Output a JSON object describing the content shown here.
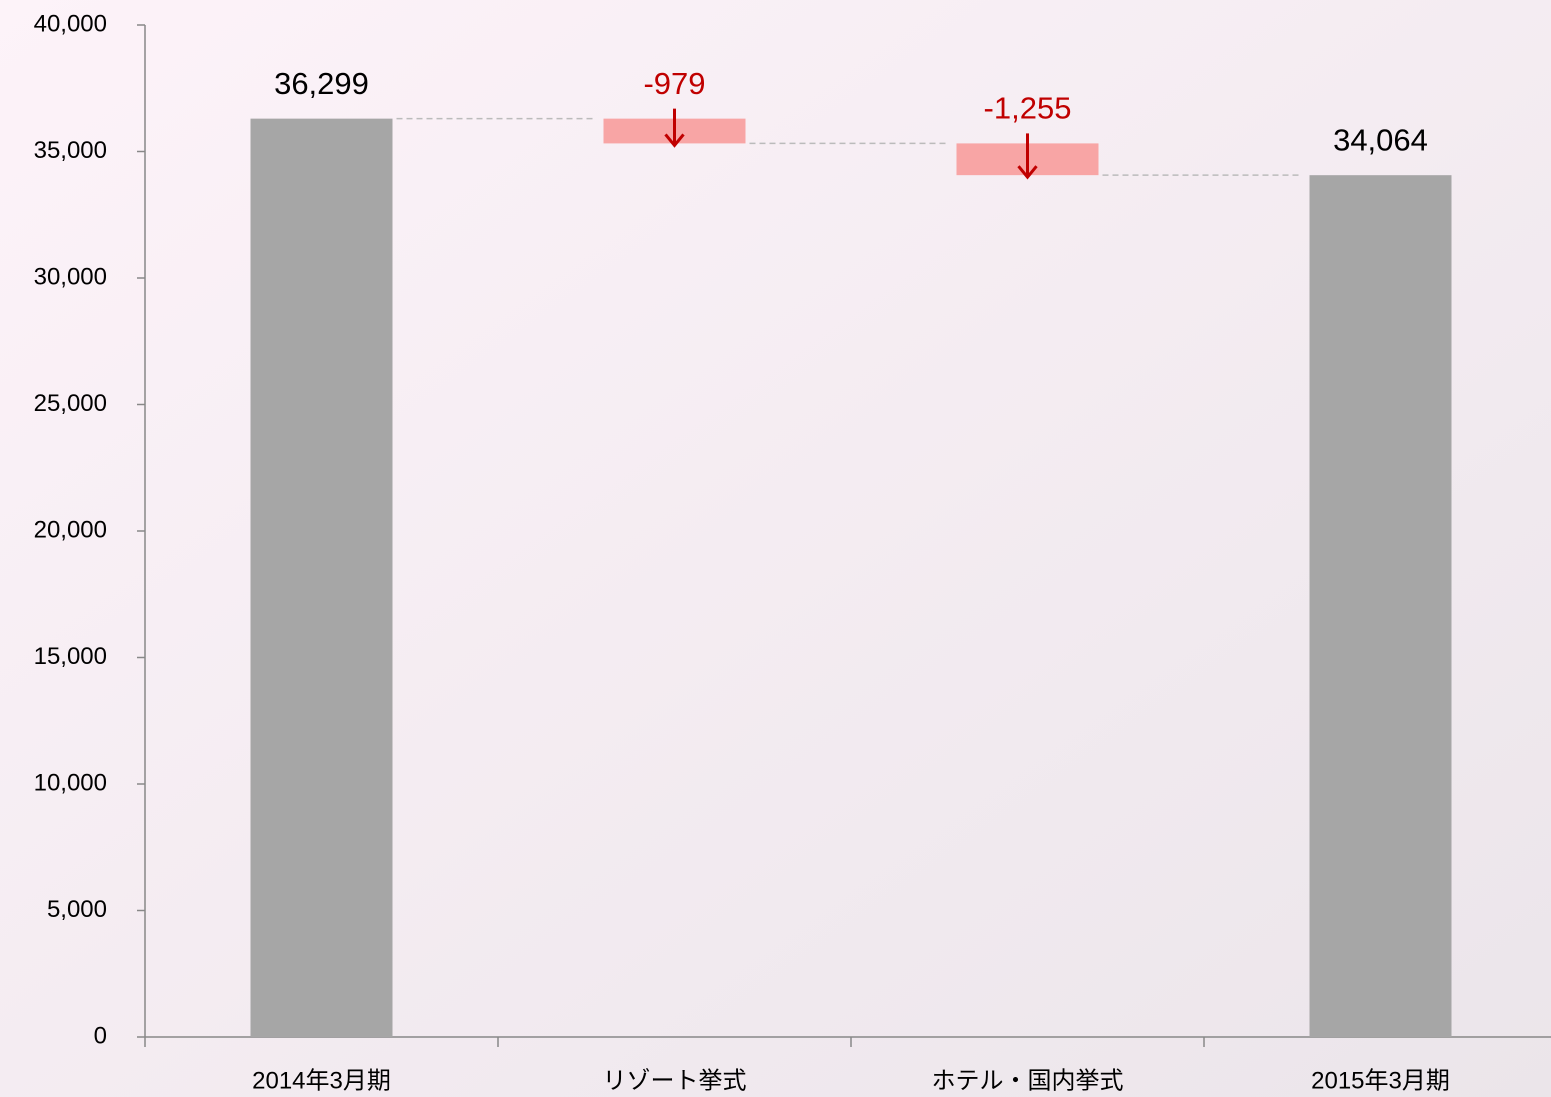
{
  "chart_data": {
    "type": "waterfall",
    "categories": [
      "2014年3月期",
      "リゾート挙式",
      "ホテル・国内挙式",
      "2015年3月期"
    ],
    "values": [
      36299,
      -979,
      -1255,
      34064
    ],
    "value_labels": [
      "36,299",
      "-979",
      "-1,255",
      "34,064"
    ],
    "colors": {
      "total": "#a6a6a6",
      "decrease": "#f8a5a5",
      "decrease_label": "#c00000",
      "total_label": "#000000"
    },
    "ylim": [
      0,
      40000
    ],
    "yticks": [
      0,
      {
        "value": 5000,
        "label": "5,000"
      },
      {
        "value": 10000,
        "label": "10,000"
      },
      {
        "value": 15000,
        "label": "15,000"
      },
      {
        "value": 20000,
        "label": "20,000"
      },
      {
        "value": 25000,
        "label": "25,000"
      },
      {
        "value": 30000,
        "label": "30,000"
      },
      {
        "value": 35000,
        "label": "35,000"
      },
      {
        "value": 40000,
        "label": "40,000"
      }
    ],
    "grid": false
  }
}
